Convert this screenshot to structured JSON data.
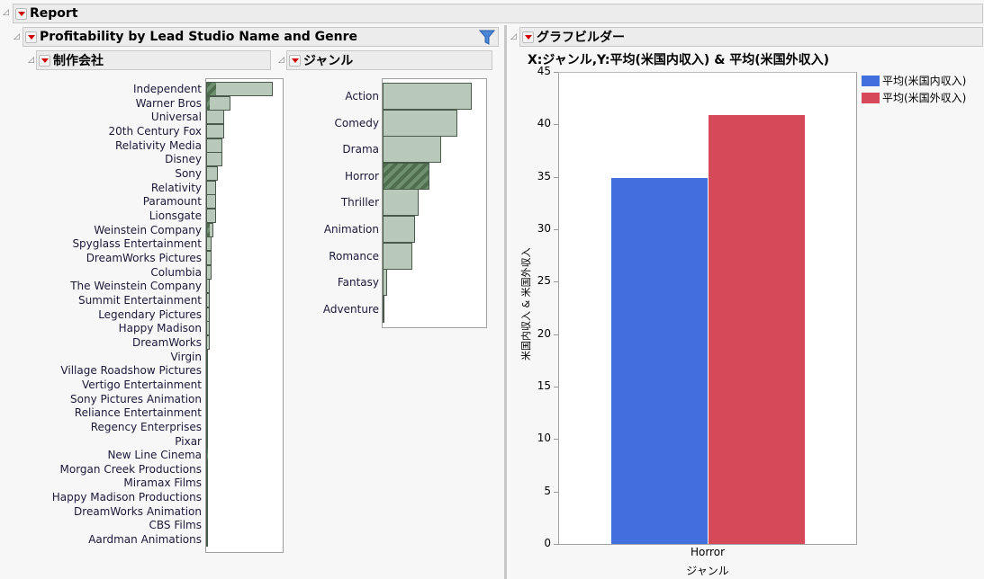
{
  "report": {
    "title": "Report"
  },
  "panel": {
    "title": "Profitability by Lead Studio Name and Genre",
    "filter_icon": "funnel-icon"
  },
  "studio": {
    "title": "制作会社",
    "items": [
      {
        "label": "Independent",
        "value": 73,
        "selected": 10
      },
      {
        "label": "Warner Bros",
        "value": 26,
        "selected": 3
      },
      {
        "label": "Universal",
        "value": 19,
        "selected": 0
      },
      {
        "label": "20th Century Fox",
        "value": 19,
        "selected": 0
      },
      {
        "label": "Relativity Media",
        "value": 17,
        "selected": 0
      },
      {
        "label": "Disney",
        "value": 17,
        "selected": 0
      },
      {
        "label": "Sony",
        "value": 12,
        "selected": 0
      },
      {
        "label": "Relativity",
        "value": 10,
        "selected": 0
      },
      {
        "label": "Paramount",
        "value": 10,
        "selected": 0
      },
      {
        "label": "Lionsgate",
        "value": 10,
        "selected": 0
      },
      {
        "label": "Weinstein Company",
        "value": 7,
        "selected": 3
      },
      {
        "label": "Spyglass Entertainment",
        "value": 5,
        "selected": 0
      },
      {
        "label": "DreamWorks Pictures",
        "value": 5,
        "selected": 0
      },
      {
        "label": "Columbia",
        "value": 5,
        "selected": 0
      },
      {
        "label": "The Weinstein Company",
        "value": 3,
        "selected": 0
      },
      {
        "label": "Summit Entertainment",
        "value": 3,
        "selected": 0
      },
      {
        "label": "Legendary Pictures",
        "value": 3,
        "selected": 0
      },
      {
        "label": "Happy Madison",
        "value": 3,
        "selected": 0
      },
      {
        "label": "DreamWorks",
        "value": 3,
        "selected": 0
      },
      {
        "label": "Virgin",
        "value": 1,
        "selected": 0
      },
      {
        "label": "Village Roadshow Pictures",
        "value": 1,
        "selected": 0
      },
      {
        "label": "Vertigo Entertainment",
        "value": 1,
        "selected": 0
      },
      {
        "label": "Sony Pictures Animation",
        "value": 1,
        "selected": 0
      },
      {
        "label": "Reliance Entertainment",
        "value": 1,
        "selected": 0
      },
      {
        "label": "Regency Enterprises",
        "value": 1,
        "selected": 0
      },
      {
        "label": "Pixar",
        "value": 1,
        "selected": 0
      },
      {
        "label": "New Line Cinema",
        "value": 1,
        "selected": 1
      },
      {
        "label": "Morgan Creek Productions",
        "value": 1,
        "selected": 0
      },
      {
        "label": "Miramax Films",
        "value": 1,
        "selected": 0
      },
      {
        "label": "Happy Madison Productions",
        "value": 1,
        "selected": 0
      },
      {
        "label": "DreamWorks Animation",
        "value": 1,
        "selected": 0
      },
      {
        "label": "CBS Films",
        "value": 1,
        "selected": 0
      },
      {
        "label": "Aardman Animations",
        "value": 1,
        "selected": 0
      }
    ]
  },
  "genre": {
    "title": "ジャンル",
    "items": [
      {
        "label": "Action",
        "value": 99,
        "selected": false
      },
      {
        "label": "Comedy",
        "value": 83,
        "selected": false
      },
      {
        "label": "Drama",
        "value": 65,
        "selected": false
      },
      {
        "label": "Horror",
        "value": 52,
        "selected": true
      },
      {
        "label": "Thriller",
        "value": 40,
        "selected": false
      },
      {
        "label": "Animation",
        "value": 36,
        "selected": false
      },
      {
        "label": "Romance",
        "value": 33,
        "selected": false
      },
      {
        "label": "Fantasy",
        "value": 5,
        "selected": false
      },
      {
        "label": "Adventure",
        "value": 2,
        "selected": false
      }
    ]
  },
  "graph_builder": {
    "title": "グラフビルダー"
  },
  "chart_data": {
    "type": "bar",
    "title": "X:ジャンル,Y:平均(米国内収入) & 平均(米国外収入)",
    "xlabel": "ジャンル",
    "ylabel": "米国内収入 & 米国外収入",
    "categories": [
      "Horror"
    ],
    "series": [
      {
        "name": "平均(米国内収入)",
        "values": [
          34.9
        ],
        "color": "#4170de"
      },
      {
        "name": "平均(米国外収入)",
        "values": [
          40.9
        ],
        "color": "#d54959"
      }
    ],
    "ylim": [
      0,
      45
    ],
    "yticks": [
      0,
      5,
      10,
      15,
      20,
      25,
      30,
      35,
      40,
      45
    ],
    "grid": false,
    "legend": "right"
  }
}
